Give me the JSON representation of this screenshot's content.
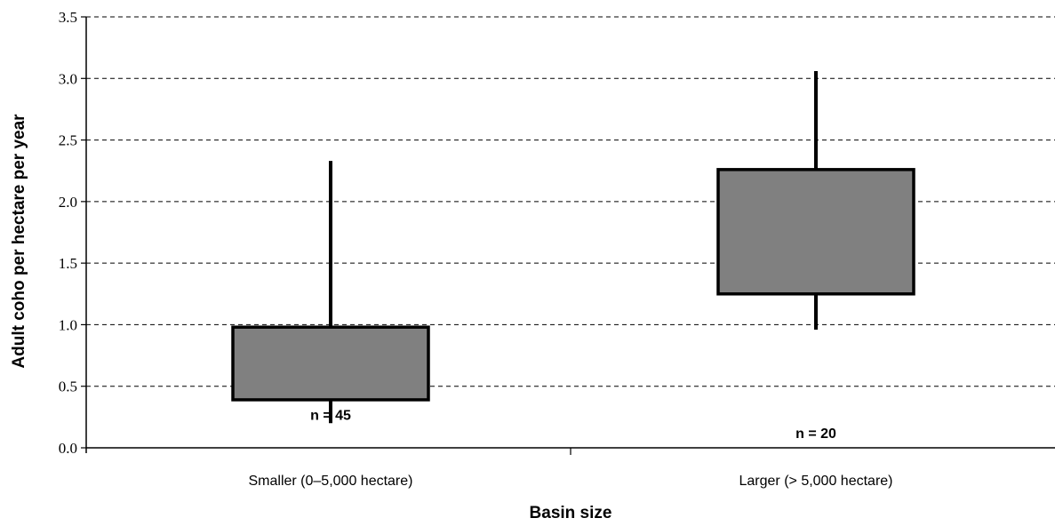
{
  "chart_data": {
    "type": "box",
    "xlabel": "Basin size",
    "ylabel": "Adult coho per hectare per year",
    "ylim": [
      0,
      3.5
    ],
    "yticks": [
      "0.0",
      "0.5",
      "1.0",
      "1.5",
      "2.0",
      "2.5",
      "3.0",
      "3.5"
    ],
    "grid": "horizontal dashed",
    "box_color": "#808080",
    "categories": [
      "Smaller (0–5,000 hectare)",
      "Larger (> 5,000 hectare)"
    ],
    "boxes": [
      {
        "category": "Smaller (0–5,000 hectare)",
        "min": 0.2,
        "q1": 0.39,
        "q3": 0.98,
        "max": 2.33,
        "n_label": "n = 45"
      },
      {
        "category": "Larger (> 5,000 hectare)",
        "min": 0.96,
        "q1": 1.25,
        "q3": 2.26,
        "max": 3.06,
        "n_label": "n = 20"
      }
    ]
  }
}
